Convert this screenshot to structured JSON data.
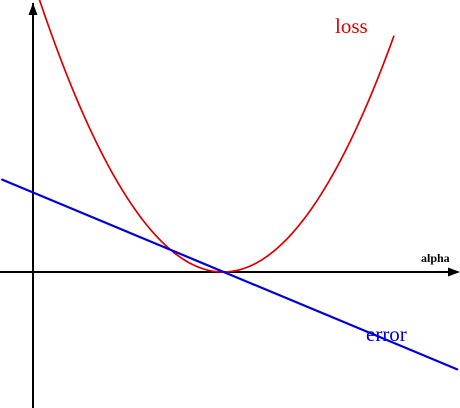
{
  "chart_data": {
    "type": "line",
    "title": "",
    "xlabel": "alpha",
    "ylabel": "",
    "grid": false,
    "legend": "none",
    "series": [
      {
        "name": "loss",
        "color": "#dd0000",
        "shape": "parabola",
        "x": [
          -1.61,
          -1.2,
          -0.8,
          -0.4,
          0.0,
          0.4,
          0.8,
          1.2,
          1.4
        ],
        "y": [
          4.9,
          2.81,
          1.24,
          0.31,
          0.0,
          0.31,
          1.24,
          2.81,
          3.81
        ]
      },
      {
        "name": "error",
        "color": "#0000dd",
        "shape": "line",
        "x": [
          -1.81,
          1.92
        ],
        "y": [
          1.49,
          -1.57
        ]
      }
    ],
    "xlim": [
      -1.81,
      1.92
    ],
    "ylim": [
      -1.66,
      4.9
    ]
  }
}
